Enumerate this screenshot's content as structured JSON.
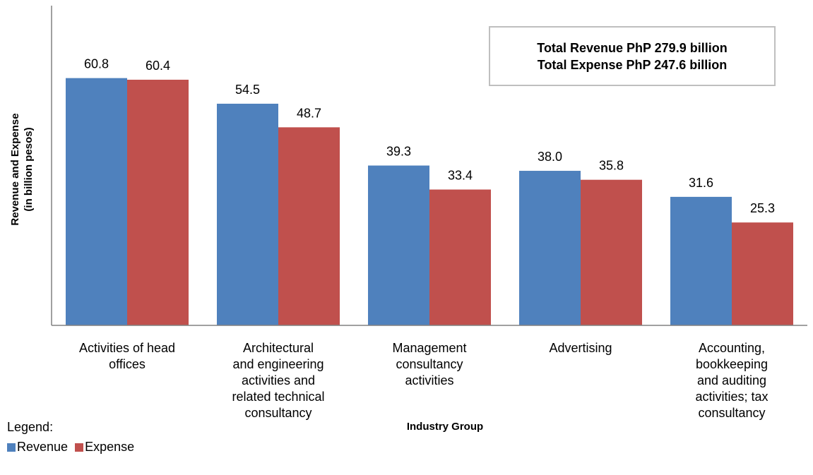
{
  "colors": {
    "revenue": "#4f81bd",
    "expense": "#c0504d",
    "axis": "#808080"
  },
  "annotation": {
    "line1": "Total Revenue PhP 279.9 billion",
    "line2": "Total Expense PhP 247.6 billion"
  },
  "legend": {
    "title": "Legend:",
    "items": [
      "Revenue",
      "Expense"
    ]
  },
  "chart_data": {
    "type": "bar",
    "categories": [
      "Activities of head\noffices",
      "Architectural\nand engineering\nactivities and\nrelated technical\nconsultancy",
      "Management\nconsultancy\nactivities",
      "Advertising",
      "Accounting,\nbookkeeping\nand auditing\nactivities; tax\nconsultancy"
    ],
    "series": [
      {
        "name": "Revenue",
        "values": [
          60.8,
          54.5,
          39.3,
          38.0,
          31.6
        ]
      },
      {
        "name": "Expense",
        "values": [
          60.4,
          48.7,
          33.4,
          35.8,
          25.3
        ]
      }
    ],
    "data_labels": [
      [
        "60.8",
        "54.5",
        "39.3",
        "38.0",
        "31.6"
      ],
      [
        "60.4",
        "48.7",
        "33.4",
        "35.8",
        "25.3"
      ]
    ],
    "title": "",
    "xlabel": "Industry Group",
    "ylabel": "Revenue and Expense",
    "ylabel2": "(in billion pesos)",
    "ylim": [
      0,
      80
    ],
    "grid": false,
    "legend_position": "bottom-left"
  }
}
